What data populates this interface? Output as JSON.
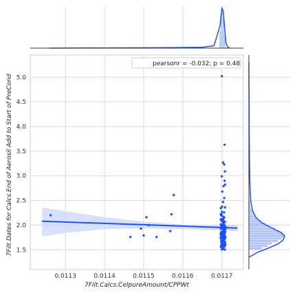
{
  "chart_data": {
    "type": "scatter",
    "title": "",
    "xlabel": "7Filt.Calcs.CelpureAmount/CPPWt",
    "ylabel": "7Filt.Dates for Calcs.End of Aerosil Add to Start of PreCond",
    "xlim": [
      0.01121,
      0.011755
    ],
    "ylim": [
      1.1,
      5.45
    ],
    "x_ticks": [
      0.0113,
      0.0114,
      0.0115,
      0.0116,
      0.0117
    ],
    "x_tick_labels": [
      "0.0113",
      "0.0114",
      "0.0115",
      "0.0116",
      "0.0117"
    ],
    "y_ticks": [
      1.5,
      2.0,
      2.5,
      3.0,
      3.5,
      4.0,
      4.5,
      5.0
    ],
    "y_tick_labels": [
      "1.5",
      "2.0",
      "2.5",
      "3.0",
      "3.5",
      "4.0",
      "4.5",
      "5.0"
    ],
    "grid": true,
    "legend": {
      "text": "pearsonr = -0.032; p = 0.48",
      "placement": "top-right"
    },
    "color": "#1f4fff",
    "band_color": "#c9d6ff",
    "points": [
      [
        0.011262,
        2.2
      ],
      [
        0.011466,
        1.76
      ],
      [
        0.011493,
        1.93
      ],
      [
        0.0115,
        1.79
      ],
      [
        0.011507,
        2.16
      ],
      [
        0.011513,
        2.0
      ],
      [
        0.011533,
        1.76
      ],
      [
        0.011568,
        1.88
      ],
      [
        0.011571,
        2.22
      ],
      [
        0.011577,
        2.61
      ],
      [
        0.0117,
        5.02
      ],
      [
        0.011707,
        3.63
      ],
      [
        0.011703,
        3.27
      ],
      [
        0.011706,
        3.23
      ],
      [
        0.011708,
        3.09
      ],
      [
        0.0117,
        2.99
      ],
      [
        0.011707,
        2.9
      ],
      [
        0.011704,
        2.79
      ],
      [
        0.011708,
        2.82
      ],
      [
        0.011701,
        2.68
      ],
      [
        0.011706,
        2.55
      ],
      [
        0.011703,
        2.47
      ],
      [
        0.011708,
        2.36
      ],
      [
        0.0117,
        2.27
      ]
    ],
    "regression": {
      "x": [
        0.01124,
        0.01174
      ],
      "y": [
        2.08,
        1.94
      ]
    },
    "confidence_band": {
      "x": [
        0.01124,
        0.0113,
        0.0114,
        0.0115,
        0.0116,
        0.0117,
        0.01174
      ],
      "lower": [
        1.77,
        1.84,
        1.92,
        1.93,
        1.92,
        1.89,
        1.87
      ],
      "upper": [
        2.36,
        2.28,
        2.16,
        2.07,
        2.01,
        1.99,
        2.01
      ]
    },
    "y_kde": {
      "y": [
        1.35,
        1.45,
        1.55,
        1.62,
        1.7,
        1.78,
        1.85,
        1.95,
        2.05,
        2.15,
        2.3,
        2.5,
        2.8,
        3.2,
        3.8,
        4.5,
        5.3
      ],
      "density": [
        0.0,
        0.25,
        0.6,
        0.82,
        0.96,
        1.0,
        0.9,
        0.62,
        0.36,
        0.2,
        0.1,
        0.05,
        0.03,
        0.02,
        0.01,
        0.005,
        0.0
      ]
    },
    "y_hist": {
      "edges": [
        1.5,
        1.55,
        1.6,
        1.65,
        1.7,
        1.75,
        1.8,
        1.85,
        1.9,
        1.95,
        2.0,
        2.05,
        2.1,
        2.15,
        2.2,
        2.25,
        2.3,
        2.35,
        2.4,
        2.45,
        2.5
      ],
      "values": [
        0.35,
        0.5,
        0.62,
        0.78,
        0.88,
        0.97,
        0.92,
        0.82,
        0.7,
        0.58,
        0.44,
        0.34,
        0.25,
        0.18,
        0.13,
        0.09,
        0.06,
        0.04,
        0.03,
        0.02
      ]
    },
    "x_kde": {
      "x": [
        0.01126,
        0.0114,
        0.01155,
        0.01165,
        0.01168,
        0.011695,
        0.0117,
        0.011703,
        0.011705,
        0.011708,
        0.01171,
        0.011715,
        0.01172
      ],
      "density": [
        0.0,
        0.005,
        0.01,
        0.02,
        0.06,
        0.55,
        1.0,
        0.95,
        0.75,
        0.4,
        0.15,
        0.03,
        0.0
      ]
    },
    "x_hist": {
      "edges": [
        0.011694,
        0.011698,
        0.011702,
        0.011706,
        0.01171
      ],
      "values": [
        0.45,
        1.0,
        0.78,
        0.35
      ]
    }
  }
}
